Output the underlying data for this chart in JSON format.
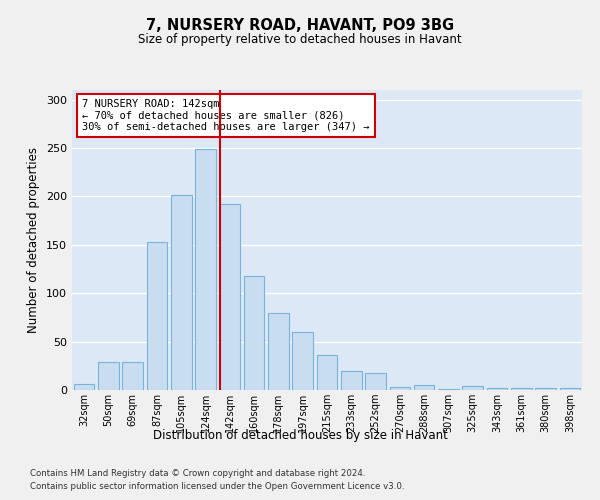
{
  "title1": "7, NURSERY ROAD, HAVANT, PO9 3BG",
  "title2": "Size of property relative to detached houses in Havant",
  "xlabel": "Distribution of detached houses by size in Havant",
  "ylabel": "Number of detached properties",
  "categories": [
    "32sqm",
    "50sqm",
    "69sqm",
    "87sqm",
    "105sqm",
    "124sqm",
    "142sqm",
    "160sqm",
    "178sqm",
    "197sqm",
    "215sqm",
    "233sqm",
    "252sqm",
    "270sqm",
    "288sqm",
    "307sqm",
    "325sqm",
    "343sqm",
    "361sqm",
    "380sqm",
    "398sqm"
  ],
  "values": [
    6,
    29,
    29,
    153,
    202,
    249,
    192,
    118,
    80,
    60,
    36,
    20,
    18,
    3,
    5,
    1,
    4,
    2,
    2,
    2,
    2
  ],
  "bar_color": "#c9ddf0",
  "bar_edge_color": "#7ab3d8",
  "highlight_index": 6,
  "highlight_line_color": "#cc0000",
  "annotation_text": "7 NURSERY ROAD: 142sqm\n← 70% of detached houses are smaller (826)\n30% of semi-detached houses are larger (347) →",
  "annotation_box_color": "#ffffff",
  "annotation_box_edge": "#cc0000",
  "ylim": [
    0,
    310
  ],
  "yticks": [
    0,
    50,
    100,
    150,
    200,
    250,
    300
  ],
  "background_color": "#dce8f5",
  "fig_background": "#f0f0f0",
  "grid_color": "#ffffff",
  "footer1": "Contains HM Land Registry data © Crown copyright and database right 2024.",
  "footer2": "Contains public sector information licensed under the Open Government Licence v3.0."
}
